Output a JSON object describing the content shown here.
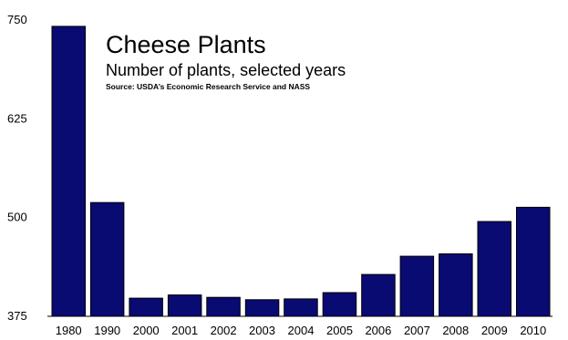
{
  "chart_data": {
    "type": "bar",
    "title": "Cheese Plants",
    "subtitle": "Number of plants, selected years",
    "source": "Source: USDA’s Economic Research Service and NASS",
    "xlabel": "",
    "ylabel": "",
    "categories": [
      "1980",
      "1990",
      "2000",
      "2001",
      "2002",
      "2003",
      "2004",
      "2005",
      "2006",
      "2007",
      "2008",
      "2009",
      "2010"
    ],
    "values": [
      742,
      519,
      398,
      402,
      399,
      396,
      397,
      405,
      428,
      451,
      454,
      495,
      513
    ],
    "ylim": [
      375,
      750
    ],
    "yticks": [
      "375",
      "500",
      "625",
      "750"
    ],
    "grid": false,
    "legend": "none",
    "colors": {
      "bar": "#0a0a73",
      "bar_edge": "#000000",
      "axis": "#000000",
      "background": "#ffffff"
    }
  }
}
